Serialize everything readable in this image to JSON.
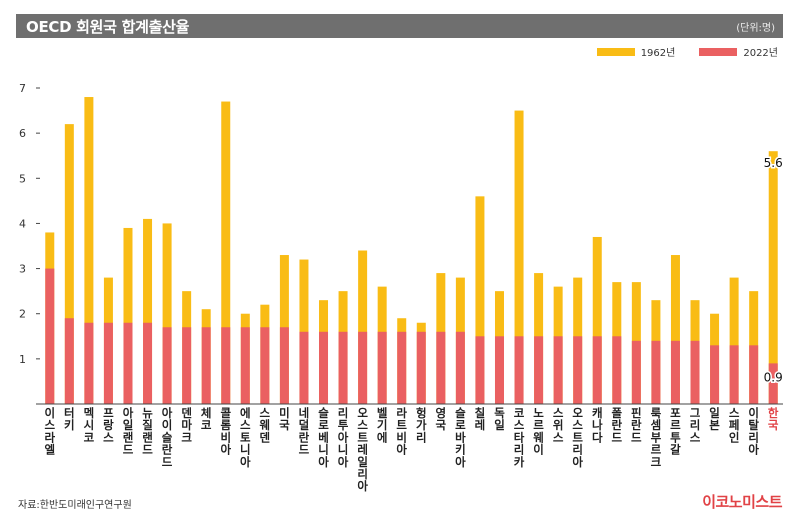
{
  "header": {
    "title": "OECD 회원국 합계출산율",
    "unit": "(단위:명)"
  },
  "legend": [
    {
      "label": "1962년",
      "color": "#F9BC15"
    },
    {
      "label": "2022년",
      "color": "#EA6061"
    }
  ],
  "footer": {
    "source": "자료:한반도미래인구연구원",
    "brand": "이코노미스트"
  },
  "chart_data": {
    "type": "bar",
    "ylim": [
      0,
      7
    ],
    "yticks": [
      "1",
      "2",
      "3",
      "4",
      "5",
      "6",
      "7"
    ],
    "highlight_color": "#E14246",
    "categories": [
      "이스라엘",
      "터키",
      "멕시코",
      "프랑스",
      "아일랜드",
      "뉴질랜드",
      "아이슬란드",
      "덴마크",
      "체코",
      "콜롬비아",
      "에스토니아",
      "스웨덴",
      "미국",
      "네덜란드",
      "슬로베니아",
      "리투아니아",
      "오스트레일리아",
      "벨기에",
      "라트비아",
      "헝가리",
      "영국",
      "슬로바키아",
      "칠레",
      "독일",
      "코스타리카",
      "노르웨이",
      "스위스",
      "오스트리아",
      "캐나다",
      "폴란드",
      "핀란드",
      "룩셈부르크",
      "포르투갈",
      "그리스",
      "일본",
      "스페인",
      "이탈리아",
      "한국"
    ],
    "highlight_category": "한국",
    "series": [
      {
        "name": "1962년",
        "values": [
          3.8,
          6.2,
          6.8,
          2.8,
          3.9,
          4.1,
          4.0,
          2.5,
          2.1,
          6.7,
          2.0,
          2.2,
          3.3,
          3.2,
          2.3,
          2.5,
          3.4,
          2.6,
          1.9,
          1.8,
          2.9,
          2.8,
          4.6,
          2.5,
          6.5,
          2.9,
          2.6,
          2.8,
          3.7,
          2.7,
          2.7,
          2.3,
          3.3,
          2.3,
          2.0,
          2.8,
          2.5,
          5.6
        ]
      },
      {
        "name": "2022년",
        "values": [
          3.0,
          1.9,
          1.8,
          1.8,
          1.8,
          1.8,
          1.7,
          1.7,
          1.7,
          1.7,
          1.7,
          1.7,
          1.7,
          1.6,
          1.6,
          1.6,
          1.6,
          1.6,
          1.6,
          1.6,
          1.6,
          1.6,
          1.5,
          1.5,
          1.5,
          1.5,
          1.5,
          1.5,
          1.5,
          1.5,
          1.4,
          1.4,
          1.4,
          1.4,
          1.3,
          1.3,
          1.3,
          0.9
        ]
      }
    ],
    "annotations": [
      {
        "category": "한국",
        "series": "1962년",
        "text": "5.6"
      },
      {
        "category": "한국",
        "series": "2022년",
        "text": "0.9"
      }
    ]
  }
}
